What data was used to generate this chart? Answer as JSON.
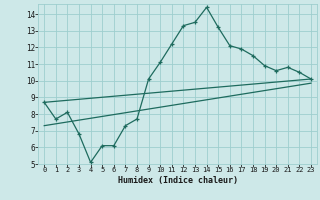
{
  "xlabel": "Humidex (Indice chaleur)",
  "bg_color": "#cde8e8",
  "grid_color": "#9ecece",
  "line_color": "#1e6b5e",
  "xlim": [
    -0.5,
    23.5
  ],
  "ylim": [
    5,
    14.6
  ],
  "yticks": [
    5,
    6,
    7,
    8,
    9,
    10,
    11,
    12,
    13,
    14
  ],
  "xticks": [
    0,
    1,
    2,
    3,
    4,
    5,
    6,
    7,
    8,
    9,
    10,
    11,
    12,
    13,
    14,
    15,
    16,
    17,
    18,
    19,
    20,
    21,
    22,
    23
  ],
  "main_x": [
    0,
    1,
    2,
    3,
    4,
    5,
    6,
    7,
    8,
    9,
    10,
    11,
    12,
    13,
    14,
    15,
    16,
    17,
    18,
    19,
    20,
    21,
    22,
    23
  ],
  "main_y": [
    8.7,
    7.7,
    8.1,
    6.8,
    5.1,
    6.1,
    6.1,
    7.3,
    7.7,
    10.1,
    11.1,
    12.2,
    13.3,
    13.5,
    14.4,
    13.2,
    12.1,
    11.9,
    11.5,
    10.9,
    10.6,
    10.8,
    10.5,
    10.1
  ],
  "line2_x": [
    0,
    23
  ],
  "line2_y": [
    8.7,
    10.1
  ],
  "line3_x": [
    0,
    23
  ],
  "line3_y": [
    7.3,
    9.85
  ]
}
